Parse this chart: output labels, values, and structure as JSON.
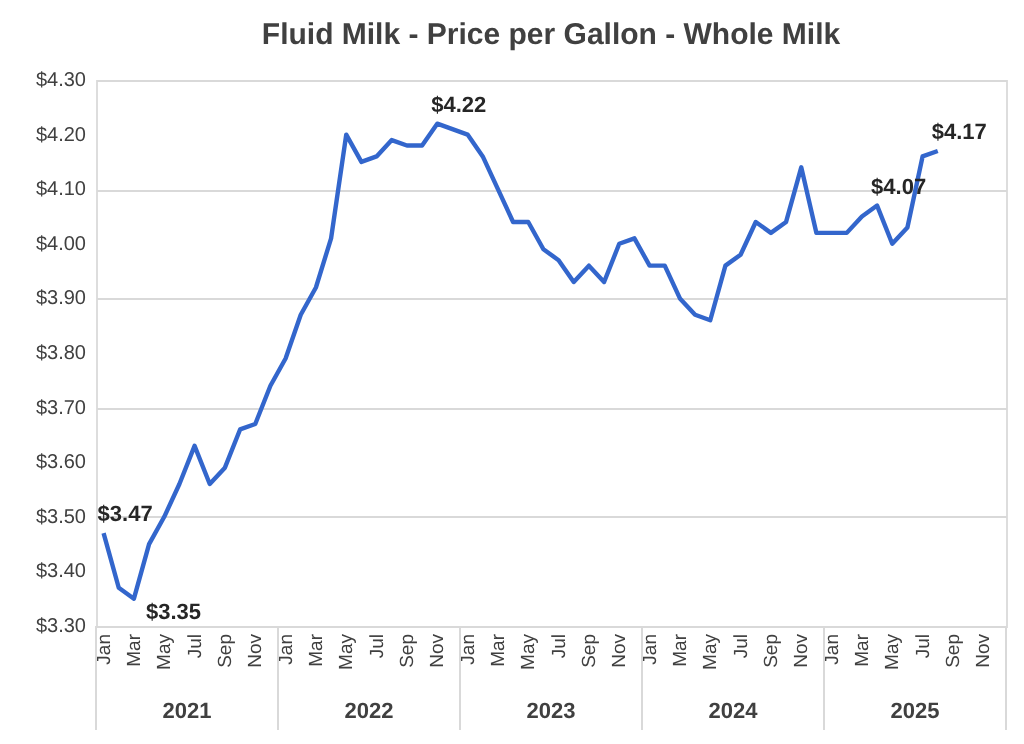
{
  "chart_data": {
    "type": "line",
    "title": "Fluid Milk - Price per Gallon - Whole Milk",
    "categories": [
      "Jan",
      null,
      "Mar",
      null,
      "May",
      null,
      "Jul",
      null,
      "Sep",
      null,
      "Nov",
      null,
      "Jan",
      null,
      "Mar",
      null,
      "May",
      null,
      "Jul",
      null,
      "Sep",
      null,
      "Nov",
      null,
      "Jan",
      null,
      "Mar",
      null,
      "May",
      null,
      "Jul",
      null,
      "Sep",
      null,
      "Nov",
      null,
      "Jan",
      null,
      "Mar",
      null,
      "May",
      null,
      "Jul",
      null,
      "Sep",
      null,
      "Nov",
      null,
      "Jan",
      null,
      "Mar",
      null,
      "May",
      null,
      "Jul",
      null,
      "Sep",
      null,
      "Nov",
      null
    ],
    "annotations": [
      "2021",
      "2022",
      "2023",
      "2024",
      "2025"
    ],
    "series": [
      {
        "color": "#3366cc",
        "values": [
          3.47,
          3.37,
          3.35,
          3.45,
          3.5,
          3.56,
          3.63,
          3.56,
          3.59,
          3.66,
          3.67,
          3.74,
          3.79,
          3.87,
          3.92,
          4.01,
          4.2,
          4.15,
          4.16,
          4.19,
          4.18,
          4.18,
          4.22,
          4.21,
          4.2,
          4.16,
          4.1,
          4.04,
          4.04,
          3.99,
          3.97,
          3.93,
          3.96,
          3.93,
          4.0,
          4.01,
          3.96,
          3.96,
          3.9,
          3.87,
          3.86,
          3.96,
          3.98,
          4.04,
          4.02,
          4.04,
          4.14,
          4.02,
          4.02,
          4.02,
          4.05,
          4.07,
          4.0,
          4.03,
          4.16,
          4.17,
          null,
          null,
          null,
          null
        ],
        "value_labels": [
          "$3.47",
          null,
          "$3.35",
          null,
          null,
          null,
          null,
          null,
          null,
          null,
          null,
          null,
          null,
          null,
          null,
          null,
          null,
          null,
          null,
          null,
          null,
          null,
          "$4.22",
          null,
          null,
          null,
          null,
          null,
          null,
          null,
          null,
          null,
          null,
          null,
          null,
          null,
          null,
          null,
          null,
          null,
          null,
          null,
          null,
          null,
          null,
          null,
          null,
          null,
          null,
          null,
          null,
          "$4.07",
          null,
          null,
          null,
          "$4.17",
          null,
          null,
          null,
          null
        ]
      }
    ],
    "ylim": [
      3.3,
      4.3
    ],
    "yticks": [
      {
        "value": 3.3,
        "label": "$3.30"
      },
      {
        "value": 3.4,
        "label": "$3.40"
      },
      {
        "value": 3.5,
        "label": "$3.50"
      },
      {
        "value": 3.6,
        "label": "$3.60"
      },
      {
        "value": 3.7,
        "label": "$3.70"
      },
      {
        "value": 3.8,
        "label": "$3.80"
      },
      {
        "value": 3.9,
        "label": "$3.90"
      },
      {
        "value": 4.0,
        "label": "$4.00"
      },
      {
        "value": 4.1,
        "label": "$4.10"
      },
      {
        "value": 4.2,
        "label": "$4.20"
      },
      {
        "value": 4.3,
        "label": "$4.30"
      }
    ],
    "grid": "y",
    "marker": "none",
    "line_style": "solid"
  }
}
